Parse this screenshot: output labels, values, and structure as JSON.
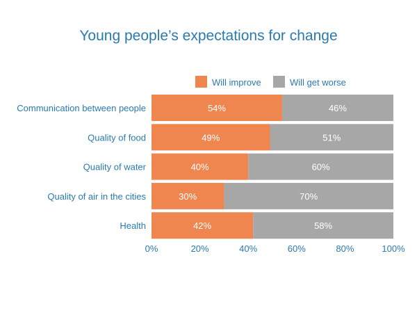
{
  "chart_data": {
    "type": "bar",
    "orientation": "horizontal",
    "stacked": true,
    "title": "Young people’s expectations for change",
    "categories": [
      "Communication between people",
      "Quality of food",
      "Quality of water",
      "Quality of air in the cities",
      "Health"
    ],
    "series": [
      {
        "name": "Will improve",
        "color": "#ef8650",
        "values": [
          54,
          49,
          40,
          30,
          42
        ],
        "labels": [
          "54%",
          "49%",
          "40%",
          "30%",
          "42%"
        ]
      },
      {
        "name": "Will get worse",
        "color": "#a7a7a7",
        "values": [
          46,
          51,
          60,
          70,
          58
        ],
        "labels": [
          "46%",
          "51%",
          "60%",
          "70%",
          "58%"
        ]
      }
    ],
    "xlim": [
      0,
      100
    ],
    "x_ticks": [
      "0%",
      "20%",
      "40%",
      "60%",
      "80%",
      "100%"
    ],
    "legend": "top-right",
    "grid": false,
    "label_color": "#2a7ab0"
  }
}
